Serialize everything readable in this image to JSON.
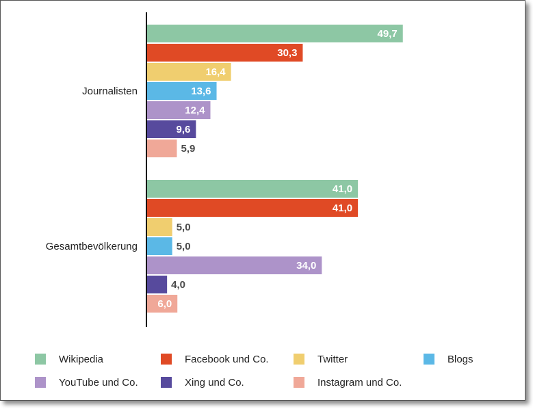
{
  "chart_data": {
    "type": "bar",
    "orientation": "horizontal",
    "categories": [
      "Journalisten",
      "Gesamtbevölkerung"
    ],
    "series": [
      {
        "name": "Wikipedia",
        "color": "#8dc7a4",
        "values": [
          49.7,
          41.0
        ],
        "labels": [
          "49,7",
          "41,0"
        ]
      },
      {
        "name": "Facebook und Co.",
        "color": "#e04a25",
        "values": [
          30.3,
          41.0
        ],
        "labels": [
          "30,3",
          "41,0"
        ]
      },
      {
        "name": "Twitter",
        "color": "#f0ce6f",
        "values": [
          16.4,
          5.0
        ],
        "labels": [
          "16,4",
          "5,0"
        ]
      },
      {
        "name": "Blogs",
        "color": "#5bb8e6",
        "values": [
          13.6,
          5.0
        ],
        "labels": [
          "13,6",
          "5,0"
        ]
      },
      {
        "name": "YouTube und Co.",
        "color": "#ad93c9",
        "values": [
          12.4,
          34.0
        ],
        "labels": [
          "12,4",
          "34,0"
        ]
      },
      {
        "name": "Xing und Co.",
        "color": "#574a9d",
        "values": [
          9.6,
          4.0
        ],
        "labels": [
          "9,6",
          "4,0"
        ]
      },
      {
        "name": "Instagram und Co.",
        "color": "#f0a898",
        "values": [
          5.9,
          6.0
        ],
        "labels": [
          "5,9",
          "6,0"
        ]
      }
    ],
    "xlim": [
      0,
      50
    ],
    "grid": false,
    "legend_position": "bottom",
    "value_label_inside_color": "#ffffff",
    "value_label_outside_color": "#4a4a4a"
  }
}
